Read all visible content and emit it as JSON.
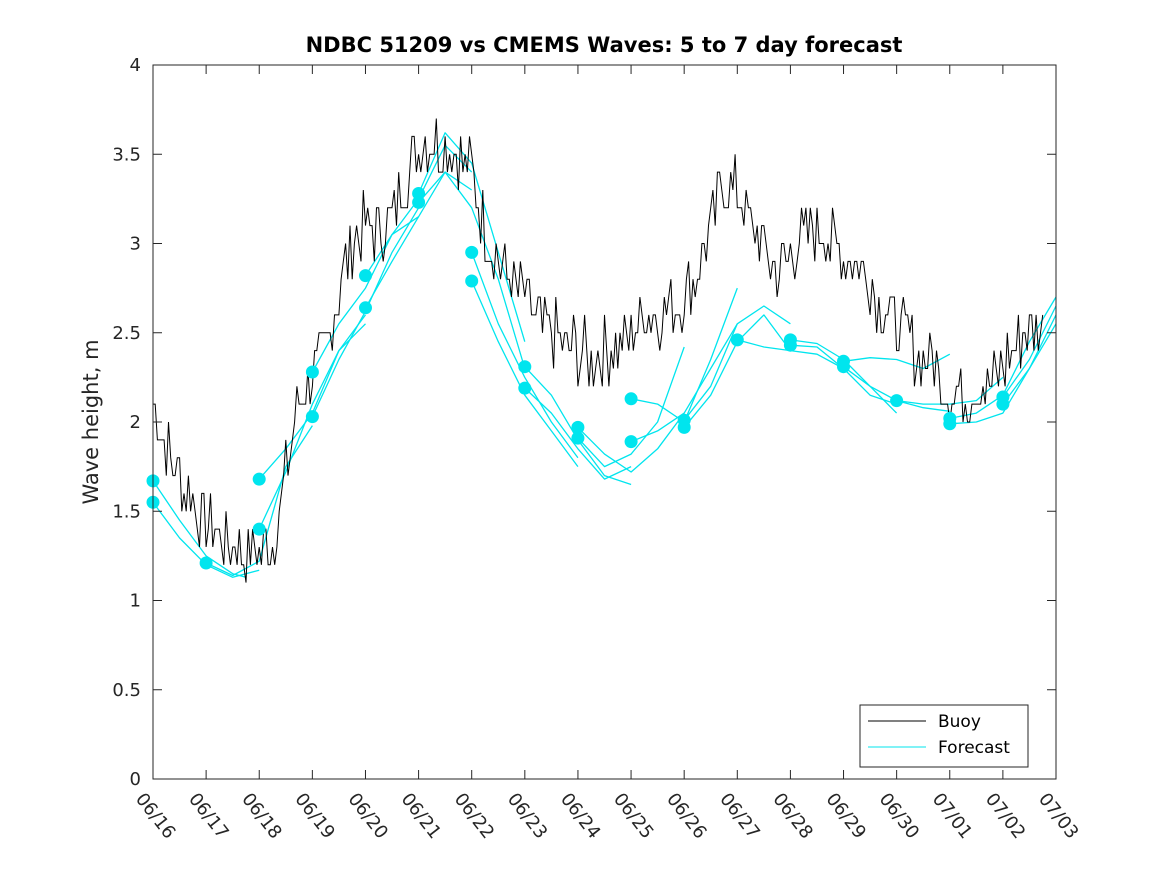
{
  "chart_data": {
    "type": "line",
    "title": "NDBC 51209 vs CMEMS Waves: 5 to 7 day forecast",
    "ylabel": "Wave height, m",
    "xlabel": "",
    "ylim": [
      0,
      4
    ],
    "xlim": [
      "06/16",
      "07/03"
    ],
    "grid": false,
    "legend_position": "bottom-right",
    "x_ticks": [
      "06/16",
      "06/17",
      "06/18",
      "06/19",
      "06/20",
      "06/21",
      "06/22",
      "06/23",
      "06/24",
      "06/25",
      "06/26",
      "06/27",
      "06/28",
      "06/29",
      "06/30",
      "07/01",
      "07/02",
      "07/03"
    ],
    "y_ticks": [
      "0",
      "0.5",
      "1",
      "1.5",
      "2",
      "2.5",
      "3",
      "3.5",
      "4"
    ],
    "colors": {
      "buoy": "#000000",
      "forecast": "#00e5ee"
    },
    "buoy": {
      "name": "Buoy",
      "x": [
        "06/16 00:00",
        "06/16 06:00",
        "06/16 12:00",
        "06/16 18:00",
        "06/17 00:00",
        "06/17 06:00",
        "06/17 12:00",
        "06/17 18:00",
        "06/18 00:00",
        "06/18 06:00",
        "06/18 12:00",
        "06/18 18:00",
        "06/19 00:00",
        "06/19 06:00",
        "06/19 12:00",
        "06/19 18:00",
        "06/20 00:00",
        "06/20 06:00",
        "06/20 12:00",
        "06/20 18:00",
        "06/21 00:00",
        "06/21 06:00",
        "06/21 12:00",
        "06/21 18:00",
        "06/22 00:00",
        "06/22 06:00",
        "06/22 12:00",
        "06/22 18:00",
        "06/23 00:00",
        "06/23 06:00",
        "06/23 12:00",
        "06/23 18:00",
        "06/24 00:00",
        "06/24 06:00",
        "06/24 12:00",
        "06/24 18:00",
        "06/25 00:00",
        "06/25 06:00",
        "06/25 12:00",
        "06/25 18:00",
        "06/26 00:00",
        "06/26 06:00",
        "06/26 12:00",
        "06/26 18:00",
        "06/27 00:00",
        "06/27 06:00",
        "06/27 12:00",
        "06/27 18:00",
        "06/28 00:00",
        "06/28 06:00",
        "06/28 12:00",
        "06/28 18:00",
        "06/29 00:00",
        "06/29 06:00",
        "06/29 12:00",
        "06/29 18:00",
        "06/30 00:00",
        "06/30 06:00",
        "06/30 12:00",
        "06/30 18:00",
        "07/01 00:00",
        "07/01 06:00",
        "07/01 12:00",
        "07/01 18:00",
        "07/02 00:00",
        "07/02 06:00",
        "07/02 12:00",
        "07/02 18:00"
      ],
      "values": [
        2.1,
        1.85,
        1.7,
        1.55,
        1.45,
        1.38,
        1.32,
        1.28,
        1.27,
        1.32,
        1.7,
        2.15,
        2.25,
        2.4,
        2.75,
        3.0,
        3.1,
        3.05,
        3.15,
        3.35,
        3.55,
        3.6,
        3.55,
        3.5,
        3.4,
        3.1,
        2.9,
        2.8,
        2.7,
        2.55,
        2.5,
        2.45,
        2.4,
        2.35,
        2.4,
        2.4,
        2.5,
        2.6,
        2.6,
        2.65,
        2.7,
        2.85,
        3.1,
        3.35,
        3.3,
        3.1,
        2.95,
        2.85,
        2.95,
        3.05,
        3.1,
        3.0,
        2.95,
        2.9,
        2.8,
        2.65,
        2.55,
        2.45,
        2.35,
        2.3,
        2.15,
        2.15,
        2.2,
        2.2,
        2.3,
        2.45,
        2.5,
        2.55
      ]
    },
    "forecast": {
      "name": "Forecast",
      "runs": [
        {
          "x": [
            "06/16 00:00",
            "06/16 12:00",
            "06/17 00:00",
            "06/17 12:00",
            "06/17 18:00"
          ],
          "values": [
            1.67,
            1.45,
            1.25,
            1.15,
            1.13
          ]
        },
        {
          "x": [
            "06/16 00:00",
            "06/16 12:00",
            "06/17 00:00",
            "06/17 12:00",
            "06/18 00:00"
          ],
          "values": [
            1.55,
            1.35,
            1.2,
            1.13,
            1.17
          ]
        },
        {
          "x": [
            "06/17 00:00",
            "06/17 12:00",
            "06/18 00:00",
            "06/18 12:00",
            "06/19 00:00"
          ],
          "values": [
            1.21,
            1.14,
            1.22,
            1.75,
            1.98
          ]
        },
        {
          "x": [
            "06/18 00:00",
            "06/18 12:00",
            "06/19 00:00",
            "06/19 12:00",
            "06/20 00:00"
          ],
          "values": [
            1.68,
            1.85,
            2.05,
            2.4,
            2.55
          ]
        },
        {
          "x": [
            "06/18 00:00",
            "06/18 12:00",
            "06/19 00:00",
            "06/19 12:00",
            "06/20 00:00"
          ],
          "values": [
            1.4,
            1.72,
            2.1,
            2.4,
            2.6
          ]
        },
        {
          "x": [
            "06/19 00:00",
            "06/19 12:00",
            "06/20 00:00",
            "06/20 12:00",
            "06/21 00:00"
          ],
          "values": [
            2.28,
            2.55,
            2.75,
            3.05,
            3.15
          ]
        },
        {
          "x": [
            "06/19 00:00",
            "06/19 12:00",
            "06/20 00:00",
            "06/20 12:00",
            "06/21 00:00"
          ],
          "values": [
            2.03,
            2.35,
            2.62,
            2.95,
            3.2
          ]
        },
        {
          "x": [
            "06/20 00:00",
            "06/20 12:00",
            "06/21 00:00",
            "06/21 12:00",
            "06/22 00:00"
          ],
          "values": [
            2.82,
            3.05,
            3.25,
            3.55,
            3.4
          ]
        },
        {
          "x": [
            "06/20 00:00",
            "06/20 12:00",
            "06/21 00:00",
            "06/21 12:00",
            "06/22 00:00"
          ],
          "values": [
            2.64,
            2.9,
            3.15,
            3.4,
            3.3
          ]
        },
        {
          "x": [
            "06/21 00:00",
            "06/21 12:00",
            "06/22 00:00",
            "06/22 12:00",
            "06/23 00:00"
          ],
          "values": [
            3.28,
            3.62,
            3.45,
            2.95,
            2.45
          ]
        },
        {
          "x": [
            "06/21 00:00",
            "06/21 12:00",
            "06/22 00:00",
            "06/22 12:00",
            "06/23 00:00"
          ],
          "values": [
            3.23,
            3.4,
            3.2,
            2.8,
            2.3
          ]
        },
        {
          "x": [
            "06/22 00:00",
            "06/22 12:00",
            "06/23 00:00",
            "06/23 12:00",
            "06/24 00:00"
          ],
          "values": [
            2.95,
            2.55,
            2.25,
            2.0,
            1.8
          ]
        },
        {
          "x": [
            "06/22 00:00",
            "06/22 12:00",
            "06/23 00:00",
            "06/23 12:00",
            "06/24 00:00"
          ],
          "values": [
            2.79,
            2.45,
            2.15,
            1.95,
            1.75
          ]
        },
        {
          "x": [
            "06/23 00:00",
            "06/23 12:00",
            "06/24 00:00",
            "06/24 12:00",
            "06/25 00:00"
          ],
          "values": [
            2.31,
            2.15,
            1.9,
            1.7,
            1.65
          ]
        },
        {
          "x": [
            "06/23 00:00",
            "06/23 12:00",
            "06/24 00:00",
            "06/24 12:00",
            "06/25 00:00"
          ],
          "values": [
            2.19,
            2.05,
            1.85,
            1.68,
            1.75
          ]
        },
        {
          "x": [
            "06/24 00:00",
            "06/24 12:00",
            "06/25 00:00",
            "06/25 12:00",
            "06/26 00:00"
          ],
          "values": [
            1.97,
            1.82,
            1.72,
            1.85,
            2.05
          ]
        },
        {
          "x": [
            "06/24 00:00",
            "06/24 12:00",
            "06/25 00:00",
            "06/25 12:00",
            "06/26 00:00"
          ],
          "values": [
            1.91,
            1.75,
            1.82,
            2.0,
            2.42
          ]
        },
        {
          "x": [
            "06/25 00:00",
            "06/25 12:00",
            "06/26 00:00",
            "06/26 12:00",
            "06/27 00:00"
          ],
          "values": [
            2.13,
            2.1,
            2.0,
            2.35,
            2.75
          ]
        },
        {
          "x": [
            "06/25 00:00",
            "06/25 12:00",
            "06/26 00:00",
            "06/26 12:00",
            "06/27 00:00"
          ],
          "values": [
            1.89,
            1.95,
            2.05,
            2.3,
            2.55
          ]
        },
        {
          "x": [
            "06/26 00:00",
            "06/26 12:00",
            "06/27 00:00",
            "06/27 12:00",
            "06/28 00:00"
          ],
          "values": [
            2.01,
            2.2,
            2.55,
            2.65,
            2.55
          ]
        },
        {
          "x": [
            "06/26 00:00",
            "06/26 12:00",
            "06/27 00:00",
            "06/27 12:00",
            "06/28 00:00"
          ],
          "values": [
            1.97,
            2.15,
            2.45,
            2.6,
            2.4
          ]
        },
        {
          "x": [
            "06/27 00:00",
            "06/27 12:00",
            "06/28 00:00",
            "06/28 12:00",
            "06/29 00:00"
          ],
          "values": [
            2.46,
            2.42,
            2.4,
            2.38,
            2.3
          ]
        },
        {
          "x": [
            "06/28 00:00",
            "06/28 12:00",
            "06/29 00:00",
            "06/29 12:00",
            "06/30 00:00"
          ],
          "values": [
            2.46,
            2.44,
            2.35,
            2.2,
            2.05
          ]
        },
        {
          "x": [
            "06/28 00:00",
            "06/28 12:00",
            "06/29 00:00",
            "06/29 12:00",
            "06/30 00:00"
          ],
          "values": [
            2.43,
            2.42,
            2.3,
            2.15,
            2.1
          ]
        },
        {
          "x": [
            "06/29 00:00",
            "06/29 12:00",
            "06/30 00:00",
            "06/30 12:00",
            "07/01 00:00"
          ],
          "values": [
            2.34,
            2.36,
            2.35,
            2.3,
            2.38
          ]
        },
        {
          "x": [
            "06/29 00:00",
            "06/29 12:00",
            "06/30 00:00",
            "06/30 12:00",
            "07/01 00:00"
          ],
          "values": [
            2.31,
            2.2,
            2.12,
            2.08,
            2.06
          ]
        },
        {
          "x": [
            "06/30 00:00",
            "06/30 12:00",
            "07/01 00:00",
            "07/01 12:00",
            "07/02 00:00"
          ],
          "values": [
            2.12,
            2.1,
            2.1,
            2.12,
            2.25
          ]
        },
        {
          "x": [
            "07/01 00:00",
            "07/01 12:00",
            "07/02 00:00",
            "07/02 12:00",
            "07/03 00:00"
          ],
          "values": [
            2.02,
            2.05,
            2.15,
            2.45,
            2.7
          ]
        },
        {
          "x": [
            "07/01 00:00",
            "07/01 12:00",
            "07/02 00:00",
            "07/02 12:00",
            "07/03 00:00"
          ],
          "values": [
            1.99,
            2.0,
            2.05,
            2.3,
            2.6
          ]
        },
        {
          "x": [
            "07/02 00:00",
            "07/02 12:00",
            "07/03 00:00"
          ],
          "values": [
            2.14,
            2.35,
            2.65
          ]
        },
        {
          "x": [
            "07/02 00:00",
            "07/02 12:00",
            "07/03 00:00"
          ],
          "values": [
            2.1,
            2.3,
            2.55
          ]
        }
      ],
      "markers": {
        "x": [
          "06/16 00:00",
          "06/16 00:00",
          "06/17 00:00",
          "06/18 00:00",
          "06/18 00:00",
          "06/19 00:00",
          "06/19 00:00",
          "06/20 00:00",
          "06/20 00:00",
          "06/21 00:00",
          "06/21 00:00",
          "06/22 00:00",
          "06/22 00:00",
          "06/23 00:00",
          "06/23 00:00",
          "06/24 00:00",
          "06/24 00:00",
          "06/25 00:00",
          "06/25 00:00",
          "06/26 00:00",
          "06/26 00:00",
          "06/27 00:00",
          "06/28 00:00",
          "06/28 00:00",
          "06/29 00:00",
          "06/29 00:00",
          "06/30 00:00",
          "07/01 00:00",
          "07/01 00:00",
          "07/02 00:00",
          "07/02 00:00"
        ],
        "values": [
          1.67,
          1.55,
          1.21,
          1.68,
          1.4,
          2.28,
          2.03,
          2.82,
          2.64,
          3.28,
          3.23,
          2.95,
          2.79,
          2.31,
          2.19,
          1.97,
          1.91,
          2.13,
          1.89,
          2.01,
          1.97,
          2.46,
          2.46,
          2.43,
          2.34,
          2.31,
          2.12,
          2.02,
          1.99,
          2.14,
          2.1
        ]
      }
    },
    "legend": [
      "Buoy",
      "Forecast"
    ]
  }
}
